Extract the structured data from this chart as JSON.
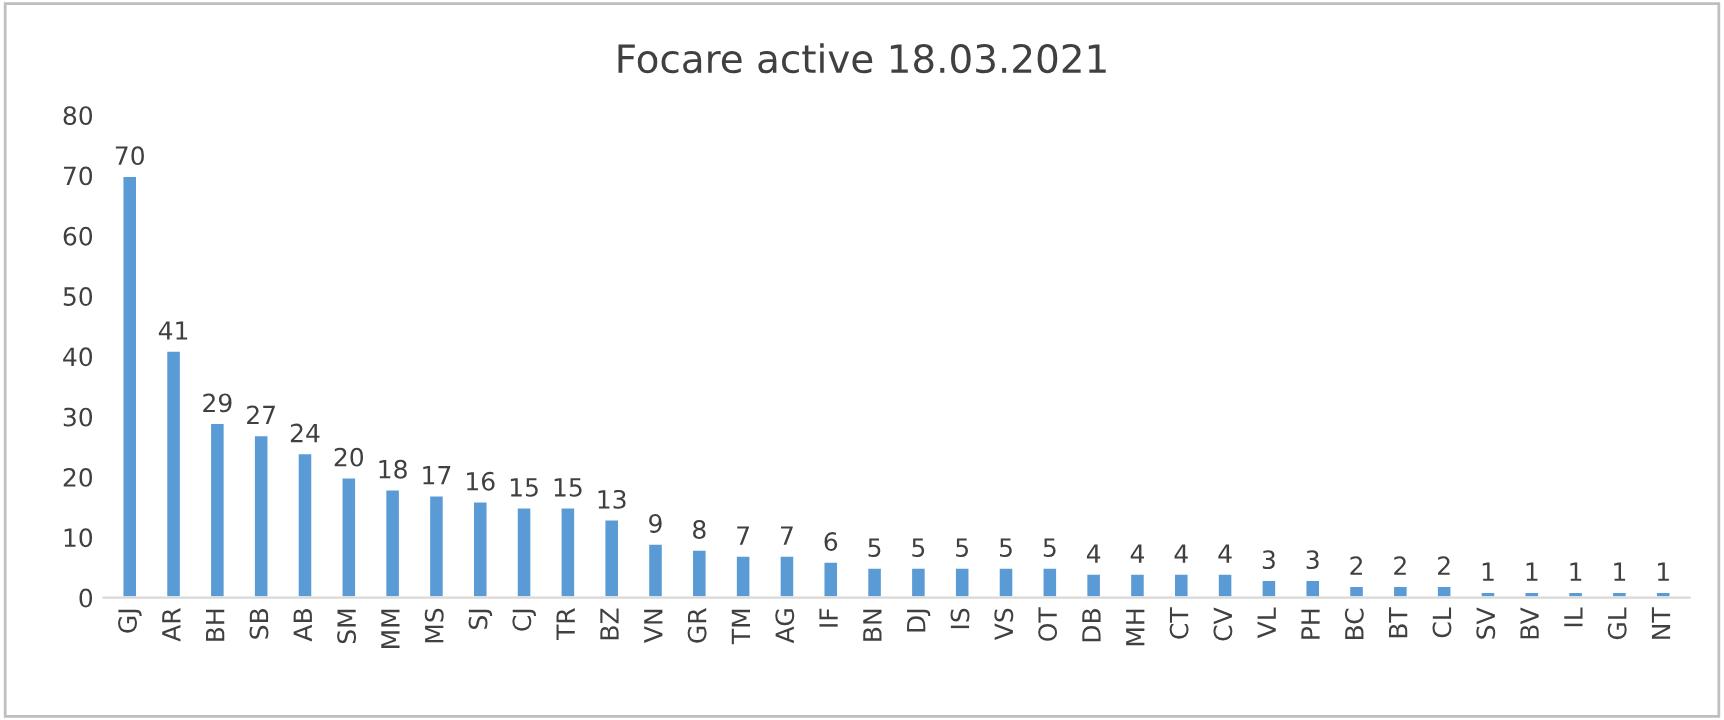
{
  "chart_data": {
    "type": "bar",
    "title": "Focare active 18.03.2021",
    "categories": [
      "GJ",
      "AR",
      "BH",
      "SB",
      "AB",
      "SM",
      "MM",
      "MS",
      "SJ",
      "CJ",
      "TR",
      "BZ",
      "VN",
      "GR",
      "TM",
      "AG",
      "IF",
      "BN",
      "DJ",
      "IS",
      "VS",
      "OT",
      "DB",
      "MH",
      "CT",
      "CV",
      "VL",
      "PH",
      "BC",
      "BT",
      "CL",
      "SV",
      "BV",
      "IL",
      "GL",
      "NT"
    ],
    "values": [
      70,
      41,
      29,
      27,
      24,
      20,
      18,
      17,
      16,
      15,
      15,
      13,
      9,
      8,
      7,
      7,
      6,
      5,
      5,
      5,
      5,
      5,
      4,
      4,
      4,
      4,
      3,
      3,
      2,
      2,
      2,
      1,
      1,
      1,
      1,
      1
    ],
    "color": "#5b9bd5",
    "ylim": [
      0,
      80
    ],
    "yticks": [
      0,
      10,
      20,
      30,
      40,
      50,
      60,
      70,
      80
    ],
    "data_labels": true,
    "grid": false
  }
}
